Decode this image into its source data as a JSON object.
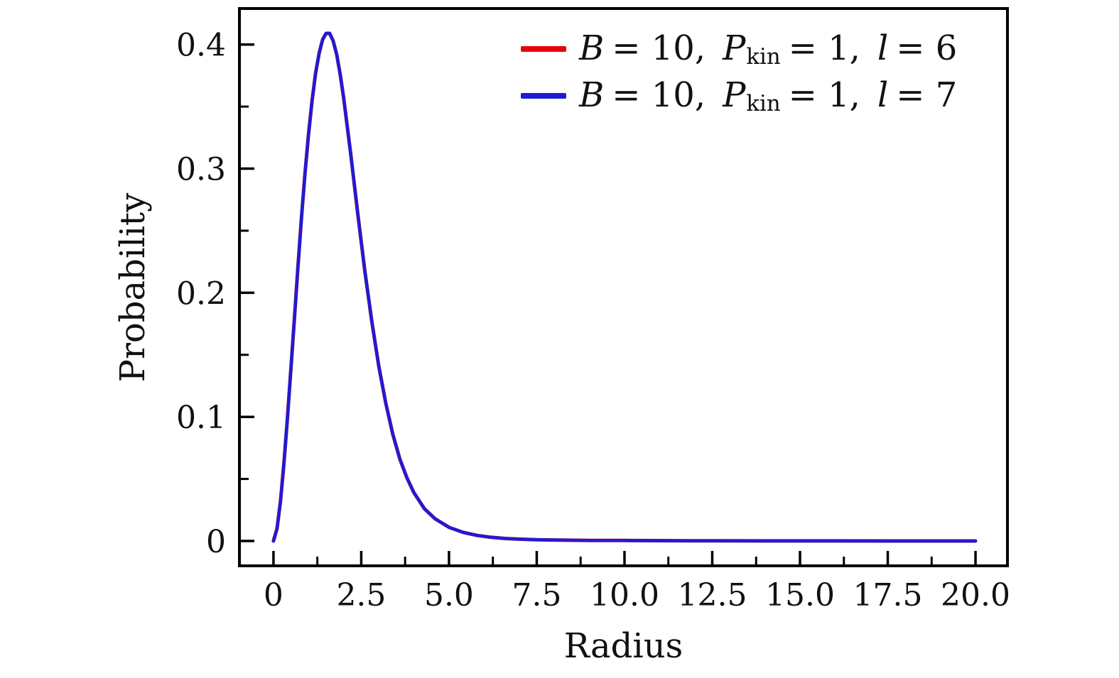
{
  "style": {
    "background": "#ffffff",
    "axis_color": "#000000",
    "red": "#e8000b",
    "blue": "#1c1cd6"
  },
  "legend": {
    "entries": [
      {
        "color": "#e8000b",
        "var_b": "B",
        "eq_b": "= 10,",
        "var_p": "P",
        "sub_p": "kin",
        "eq_p": "= 1,",
        "var_l": "l",
        "eq_l": "= 6"
      },
      {
        "color": "#1c1cd6",
        "var_b": "B",
        "eq_b": "= 10,",
        "var_p": "P",
        "sub_p": "kin",
        "eq_p": "= 1,",
        "var_l": "l",
        "eq_l": "= 7"
      }
    ]
  },
  "chart_data": {
    "type": "line",
    "title": "",
    "xlabel": "Radius",
    "ylabel": "Probability",
    "xlim": [
      -0.97,
      20.91
    ],
    "ylim": [
      -0.02,
      0.429
    ],
    "grid": false,
    "legend_position": "upper right",
    "xticks": {
      "values": [
        0,
        2.5,
        5,
        7.5,
        10,
        12.5,
        15,
        17.5,
        20
      ],
      "labels": [
        "0",
        "2.5",
        "5.0",
        "7.5",
        "10.0",
        "12.5",
        "15.0",
        "17.5",
        "20.0"
      ],
      "minor": [
        1.25,
        3.75,
        6.25,
        8.75,
        11.25,
        13.75,
        16.25,
        18.75
      ]
    },
    "yticks": {
      "values": [
        0,
        0.1,
        0.2,
        0.3,
        0.4
      ],
      "labels": [
        "0",
        "0.1",
        "0.2",
        "0.3",
        "0.4"
      ],
      "minor": [
        0.05,
        0.15,
        0.25,
        0.35
      ]
    },
    "x": [
      0,
      0.1,
      0.2,
      0.3,
      0.4,
      0.5,
      0.6,
      0.7,
      0.8,
      0.9,
      1.0,
      1.1,
      1.2,
      1.3,
      1.4,
      1.5,
      1.6,
      1.7,
      1.8,
      1.9,
      2.0,
      2.2,
      2.4,
      2.6,
      2.8,
      3.0,
      3.2,
      3.4,
      3.6,
      3.8,
      4.0,
      4.3,
      4.6,
      5.0,
      5.4,
      5.8,
      6.2,
      6.6,
      7.0,
      7.5,
      8.0,
      9.0,
      10.0,
      12.0,
      14.0,
      16.0,
      18.0,
      20.0
    ],
    "series": [
      {
        "name": "B = 10, P_kin = 1, l = 6",
        "color": "#e8000b",
        "line_width": 5.0,
        "values": [
          0,
          0.01,
          0.032,
          0.063,
          0.1,
          0.14,
          0.181,
          0.222,
          0.261,
          0.297,
          0.328,
          0.355,
          0.377,
          0.393,
          0.404,
          0.409,
          0.409,
          0.403,
          0.392,
          0.376,
          0.357,
          0.312,
          0.264,
          0.218,
          0.177,
          0.141,
          0.111,
          0.086,
          0.066,
          0.051,
          0.039,
          0.026,
          0.018,
          0.011,
          0.007,
          0.0045,
          0.003,
          0.002,
          0.0015,
          0.001,
          0.0008,
          0.0005,
          0.0004,
          0.0002,
          0.0001,
          0.0001,
          0,
          0
        ]
      },
      {
        "name": "B = 10, P_kin = 1, l = 7",
        "color": "#1c1cd6",
        "line_width": 4.5,
        "values": [
          0,
          0.01,
          0.032,
          0.063,
          0.1,
          0.14,
          0.181,
          0.222,
          0.261,
          0.297,
          0.328,
          0.355,
          0.377,
          0.393,
          0.404,
          0.409,
          0.409,
          0.403,
          0.392,
          0.376,
          0.357,
          0.312,
          0.264,
          0.218,
          0.177,
          0.141,
          0.111,
          0.086,
          0.066,
          0.051,
          0.039,
          0.026,
          0.018,
          0.011,
          0.007,
          0.0045,
          0.003,
          0.002,
          0.0015,
          0.001,
          0.0008,
          0.0005,
          0.0004,
          0.0002,
          0.0001,
          0.0001,
          0,
          0
        ]
      }
    ]
  }
}
